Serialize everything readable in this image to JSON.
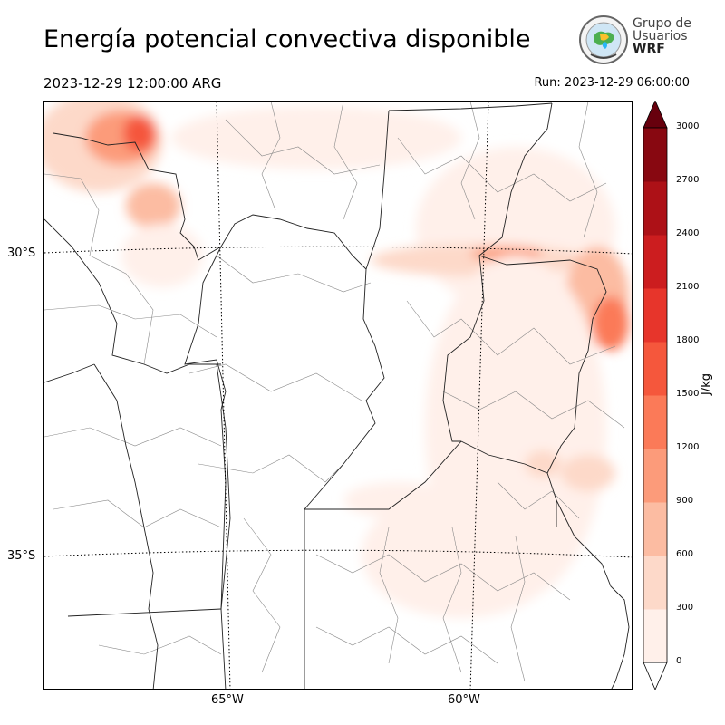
{
  "title": "Energía potencial convectiva disponible",
  "valid_time": "2023-12-29 12:00:00 ARG",
  "run_time": "Run: 2023-12-29 06:00:00",
  "logo": {
    "line1": "Grupo de",
    "line2": "Usuarios",
    "line3": "WRF"
  },
  "axes": {
    "lat_labels": [
      "30°S",
      "35°S"
    ],
    "lon_labels": [
      "65°W",
      "60°W"
    ]
  },
  "colorbar": {
    "unit": "J/kg",
    "ticks": [
      "0",
      "300",
      "600",
      "900",
      "1200",
      "1500",
      "1800",
      "2100",
      "2400",
      "2700",
      "3000"
    ],
    "colors": [
      "#fff0ea",
      "#fdd9c9",
      "#fcbca2",
      "#fc9b7a",
      "#fb7a58",
      "#f5573c",
      "#e7352b",
      "#cc1d1f",
      "#ad1117",
      "#880811"
    ],
    "extend_max_color": "#67000d"
  }
}
